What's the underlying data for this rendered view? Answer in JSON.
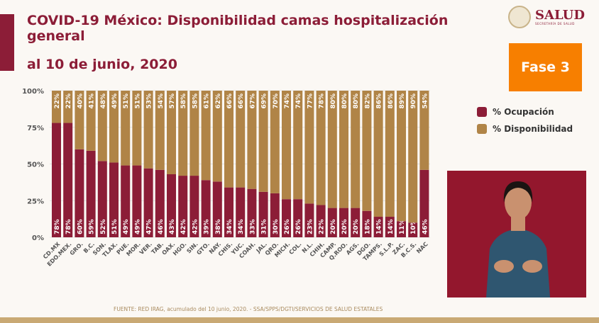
{
  "header": {
    "title": "COVID-19 México: Disponibilidad camas hospitalización general",
    "subtitle": "al 10 de junio, 2020"
  },
  "logo": {
    "name": "SALUD",
    "subtitle": "SECRETARÍA DE SALUD"
  },
  "phase_badge": "Fase 3",
  "footer": "FUENTE: RED IRAG, acumulado del 10  junio, 2020. -  SSA/SPPS/DGTI/SERVICIOS DE SALUD ESTATALES",
  "colors": {
    "ocupacion": "#8c1d37",
    "disponibilidad": "#b08447",
    "accent": "#f77f00"
  },
  "chart_data": {
    "type": "bar",
    "stacked": true,
    "categories": [
      "CD.MX",
      "EDO.MEX.",
      "GRO.",
      "B.C.",
      "SON.",
      "TLAX.",
      "PUE.",
      "MOR.",
      "VER.",
      "TAB.",
      "OAX.",
      "HGO.",
      "SIN.",
      "GTO.",
      "NAY.",
      "CHIS.",
      "YUC.",
      "COAH.",
      "JAL.",
      "QRO.",
      "MICH.",
      "COL.",
      "N.L.",
      "CHIH.",
      "CAMP.",
      "Q.ROO.",
      "AGS.",
      "DGO.",
      "TAMPS.",
      "S.L.P.",
      "ZAC.",
      "B.C.S.",
      "NAC"
    ],
    "series": [
      {
        "name": "% Ocupación",
        "values": [
          78,
          78,
          60,
          59,
          52,
          51,
          49,
          49,
          47,
          46,
          43,
          42,
          42,
          39,
          38,
          34,
          34,
          33,
          31,
          30,
          26,
          26,
          23,
          22,
          20,
          20,
          20,
          18,
          14,
          14,
          11,
          10,
          46
        ]
      },
      {
        "name": "% Disponibilidad",
        "values": [
          22,
          22,
          40,
          41,
          48,
          49,
          51,
          51,
          53,
          54,
          57,
          58,
          58,
          61,
          62,
          66,
          66,
          67,
          69,
          70,
          74,
          74,
          77,
          78,
          80,
          80,
          80,
          82,
          86,
          86,
          89,
          90,
          54
        ]
      }
    ],
    "yticks": [
      "0%",
      "25%",
      "50%",
      "75%",
      "100%"
    ],
    "ylim": [
      0,
      100
    ],
    "grid": true,
    "legend": "right"
  }
}
